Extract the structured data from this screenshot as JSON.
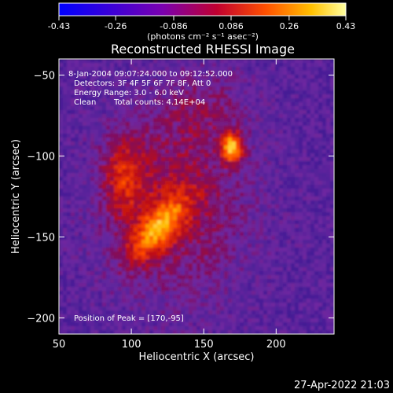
{
  "colorbar": {
    "ticks": [
      "-0.43",
      "-0.26",
      "-0.086",
      "0.086",
      "0.26",
      "0.43"
    ],
    "unit_label": "(photons cm⁻² s⁻¹ asec⁻²)"
  },
  "chart_data": {
    "type": "heatmap",
    "title": "Reconstructed RHESSI Image",
    "xlabel": "Heliocentric X (arcsec)",
    "ylabel": "Heliocentric Y (arcsec)",
    "xlim": [
      50,
      240
    ],
    "ylim": [
      -210,
      -40
    ],
    "xticks": [
      50,
      100,
      150,
      200
    ],
    "yticks": [
      -50,
      -100,
      -150,
      -200
    ],
    "color_range": [
      -0.43,
      0.43
    ],
    "peak": [
      170,
      -95
    ],
    "sources": [
      {
        "x": 170,
        "y": -95,
        "intensity": 0.43
      },
      {
        "x": 120,
        "y": -148,
        "intensity": 0.38
      },
      {
        "x": 95,
        "y": -112,
        "intensity": 0.3
      }
    ],
    "info": {
      "time": "8-Jan-2004 09:07:24.000 to 09:12:52.000",
      "detectors": "Detectors: 3F 4F 5F 6F 7F 8F, Att 0",
      "energy": "Energy Range: 3.0 - 6.0 keV",
      "method": "Clean",
      "counts": "Total counts: 4.14E+04",
      "peak_label": "Position of Peak = [170,-95]"
    }
  },
  "footer": {
    "timestamp": "27-Apr-2022 21:03"
  }
}
